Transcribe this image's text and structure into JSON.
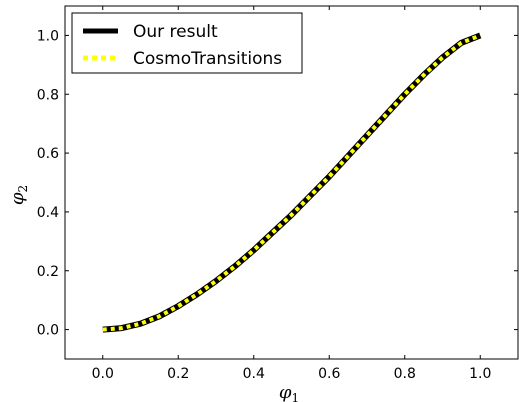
{
  "chart_data": {
    "type": "line",
    "title": "",
    "xlabel": {
      "symbol": "φ",
      "subscript": "1"
    },
    "ylabel": {
      "symbol": "φ",
      "subscript": "2"
    },
    "xlim": [
      -0.1,
      1.1
    ],
    "ylim": [
      -0.1,
      1.1
    ],
    "xticks": [
      0.0,
      0.2,
      0.4,
      0.6,
      0.8,
      1.0
    ],
    "yticks": [
      0.0,
      0.2,
      0.4,
      0.6,
      0.8,
      1.0
    ],
    "xtick_labels": [
      "0.0",
      "0.2",
      "0.4",
      "0.6",
      "0.8",
      "1.0"
    ],
    "ytick_labels": [
      "0.0",
      "0.2",
      "0.4",
      "0.6",
      "0.8",
      "1.0"
    ],
    "grid": false,
    "legend_position": "top-left",
    "series": [
      {
        "name": "Our result",
        "color": "#000000",
        "style": "solid",
        "x": [
          0.0,
          0.05,
          0.1,
          0.15,
          0.2,
          0.25,
          0.3,
          0.35,
          0.4,
          0.45,
          0.5,
          0.55,
          0.6,
          0.65,
          0.7,
          0.75,
          0.8,
          0.85,
          0.9,
          0.95,
          1.0
        ],
        "y": [
          0.0,
          0.005,
          0.02,
          0.045,
          0.08,
          0.12,
          0.165,
          0.215,
          0.27,
          0.33,
          0.39,
          0.455,
          0.52,
          0.59,
          0.66,
          0.73,
          0.8,
          0.865,
          0.925,
          0.975,
          1.0
        ]
      },
      {
        "name": "CosmoTransitions",
        "color": "#ffff00",
        "style": "dotted",
        "x": [
          0.0,
          0.05,
          0.1,
          0.15,
          0.2,
          0.25,
          0.3,
          0.35,
          0.4,
          0.45,
          0.5,
          0.55,
          0.6,
          0.65,
          0.7,
          0.75,
          0.8,
          0.85,
          0.9,
          0.95,
          1.0
        ],
        "y": [
          0.0,
          0.005,
          0.02,
          0.045,
          0.08,
          0.12,
          0.165,
          0.215,
          0.27,
          0.33,
          0.39,
          0.455,
          0.52,
          0.59,
          0.66,
          0.73,
          0.8,
          0.865,
          0.925,
          0.975,
          1.0
        ]
      }
    ]
  }
}
